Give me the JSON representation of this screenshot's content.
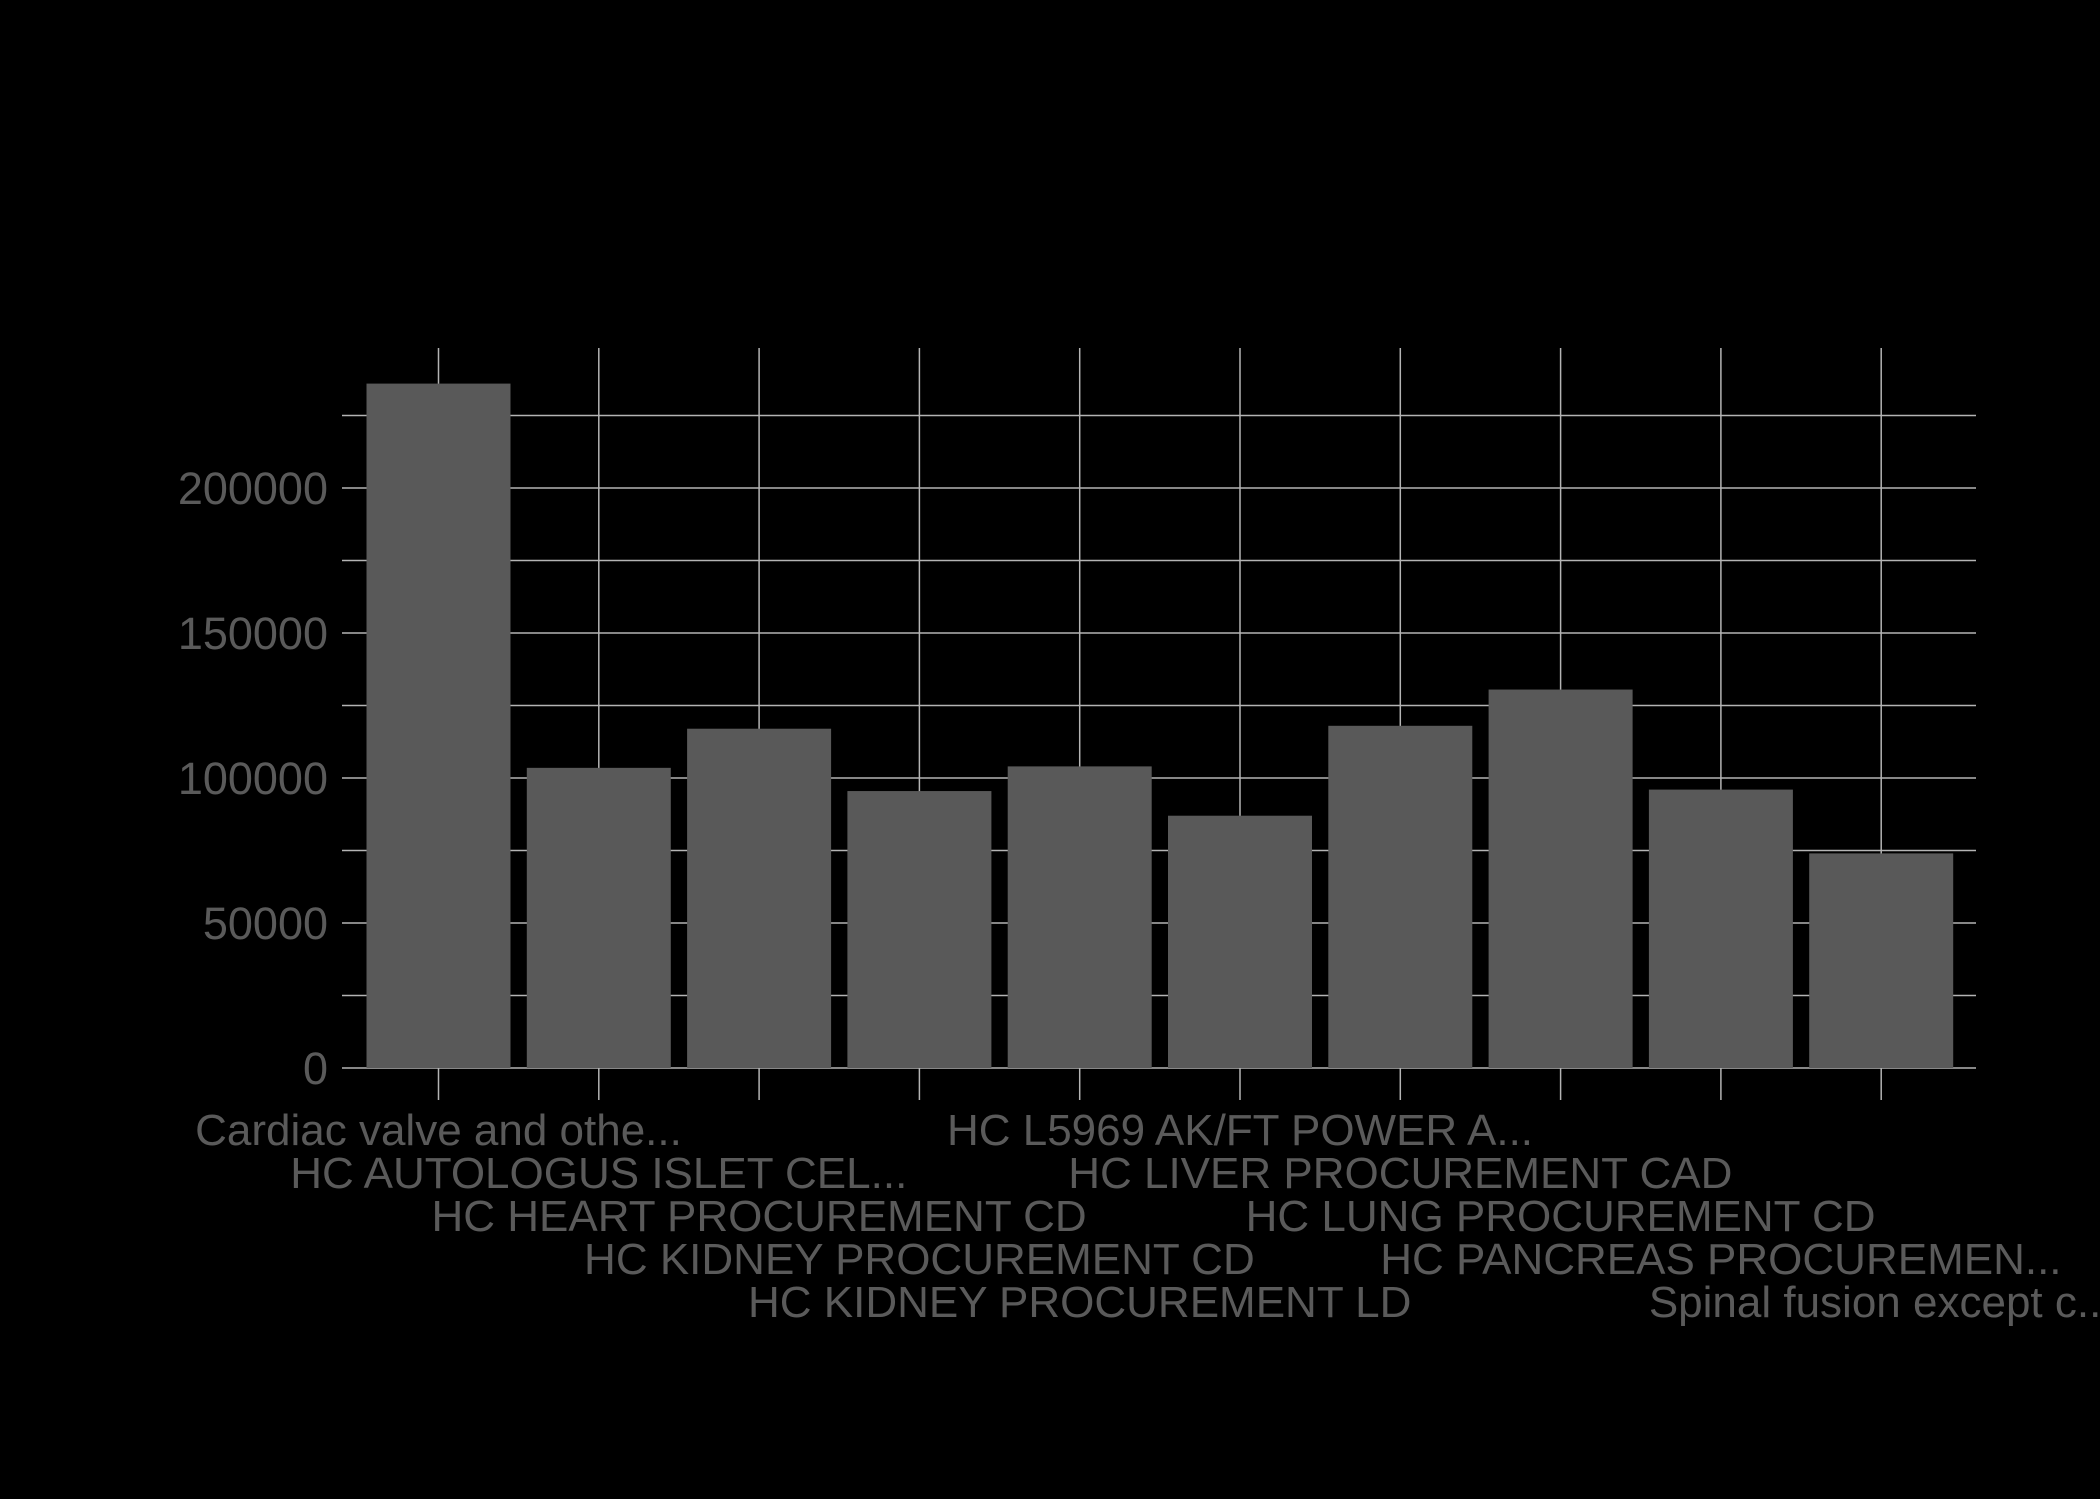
{
  "chart_data": {
    "type": "bar",
    "title": "",
    "xlabel": "",
    "ylabel": "",
    "categories": [
      "Cardiac valve and othe...",
      "HC AUTOLOGUS ISLET CEL...",
      "HC HEART PROCUREMENT CD",
      "HC KIDNEY PROCUREMENT CD",
      "HC KIDNEY PROCUREMENT LD",
      "HC L5969 AK/FT POWER A...",
      "HC LIVER PROCUREMENT CAD",
      "HC LUNG PROCUREMENT CD",
      "HC PANCREAS PROCUREMEN...",
      "Spinal fusion except c..."
    ],
    "values": [
      236000,
      103500,
      117000,
      95500,
      104000,
      87000,
      118000,
      130500,
      96000,
      74000
    ],
    "ylim": [
      0,
      225000
    ],
    "yticks": [
      0,
      50000,
      100000,
      150000,
      200000
    ],
    "ytick_labels": [
      "0",
      "50000",
      "100000",
      "150000",
      "200000"
    ],
    "grid": true,
    "legend": "none",
    "colors": {
      "background": "#000000",
      "bar": "#595959",
      "grid": "#b4b4b4",
      "text": "#5a5a5a"
    }
  }
}
